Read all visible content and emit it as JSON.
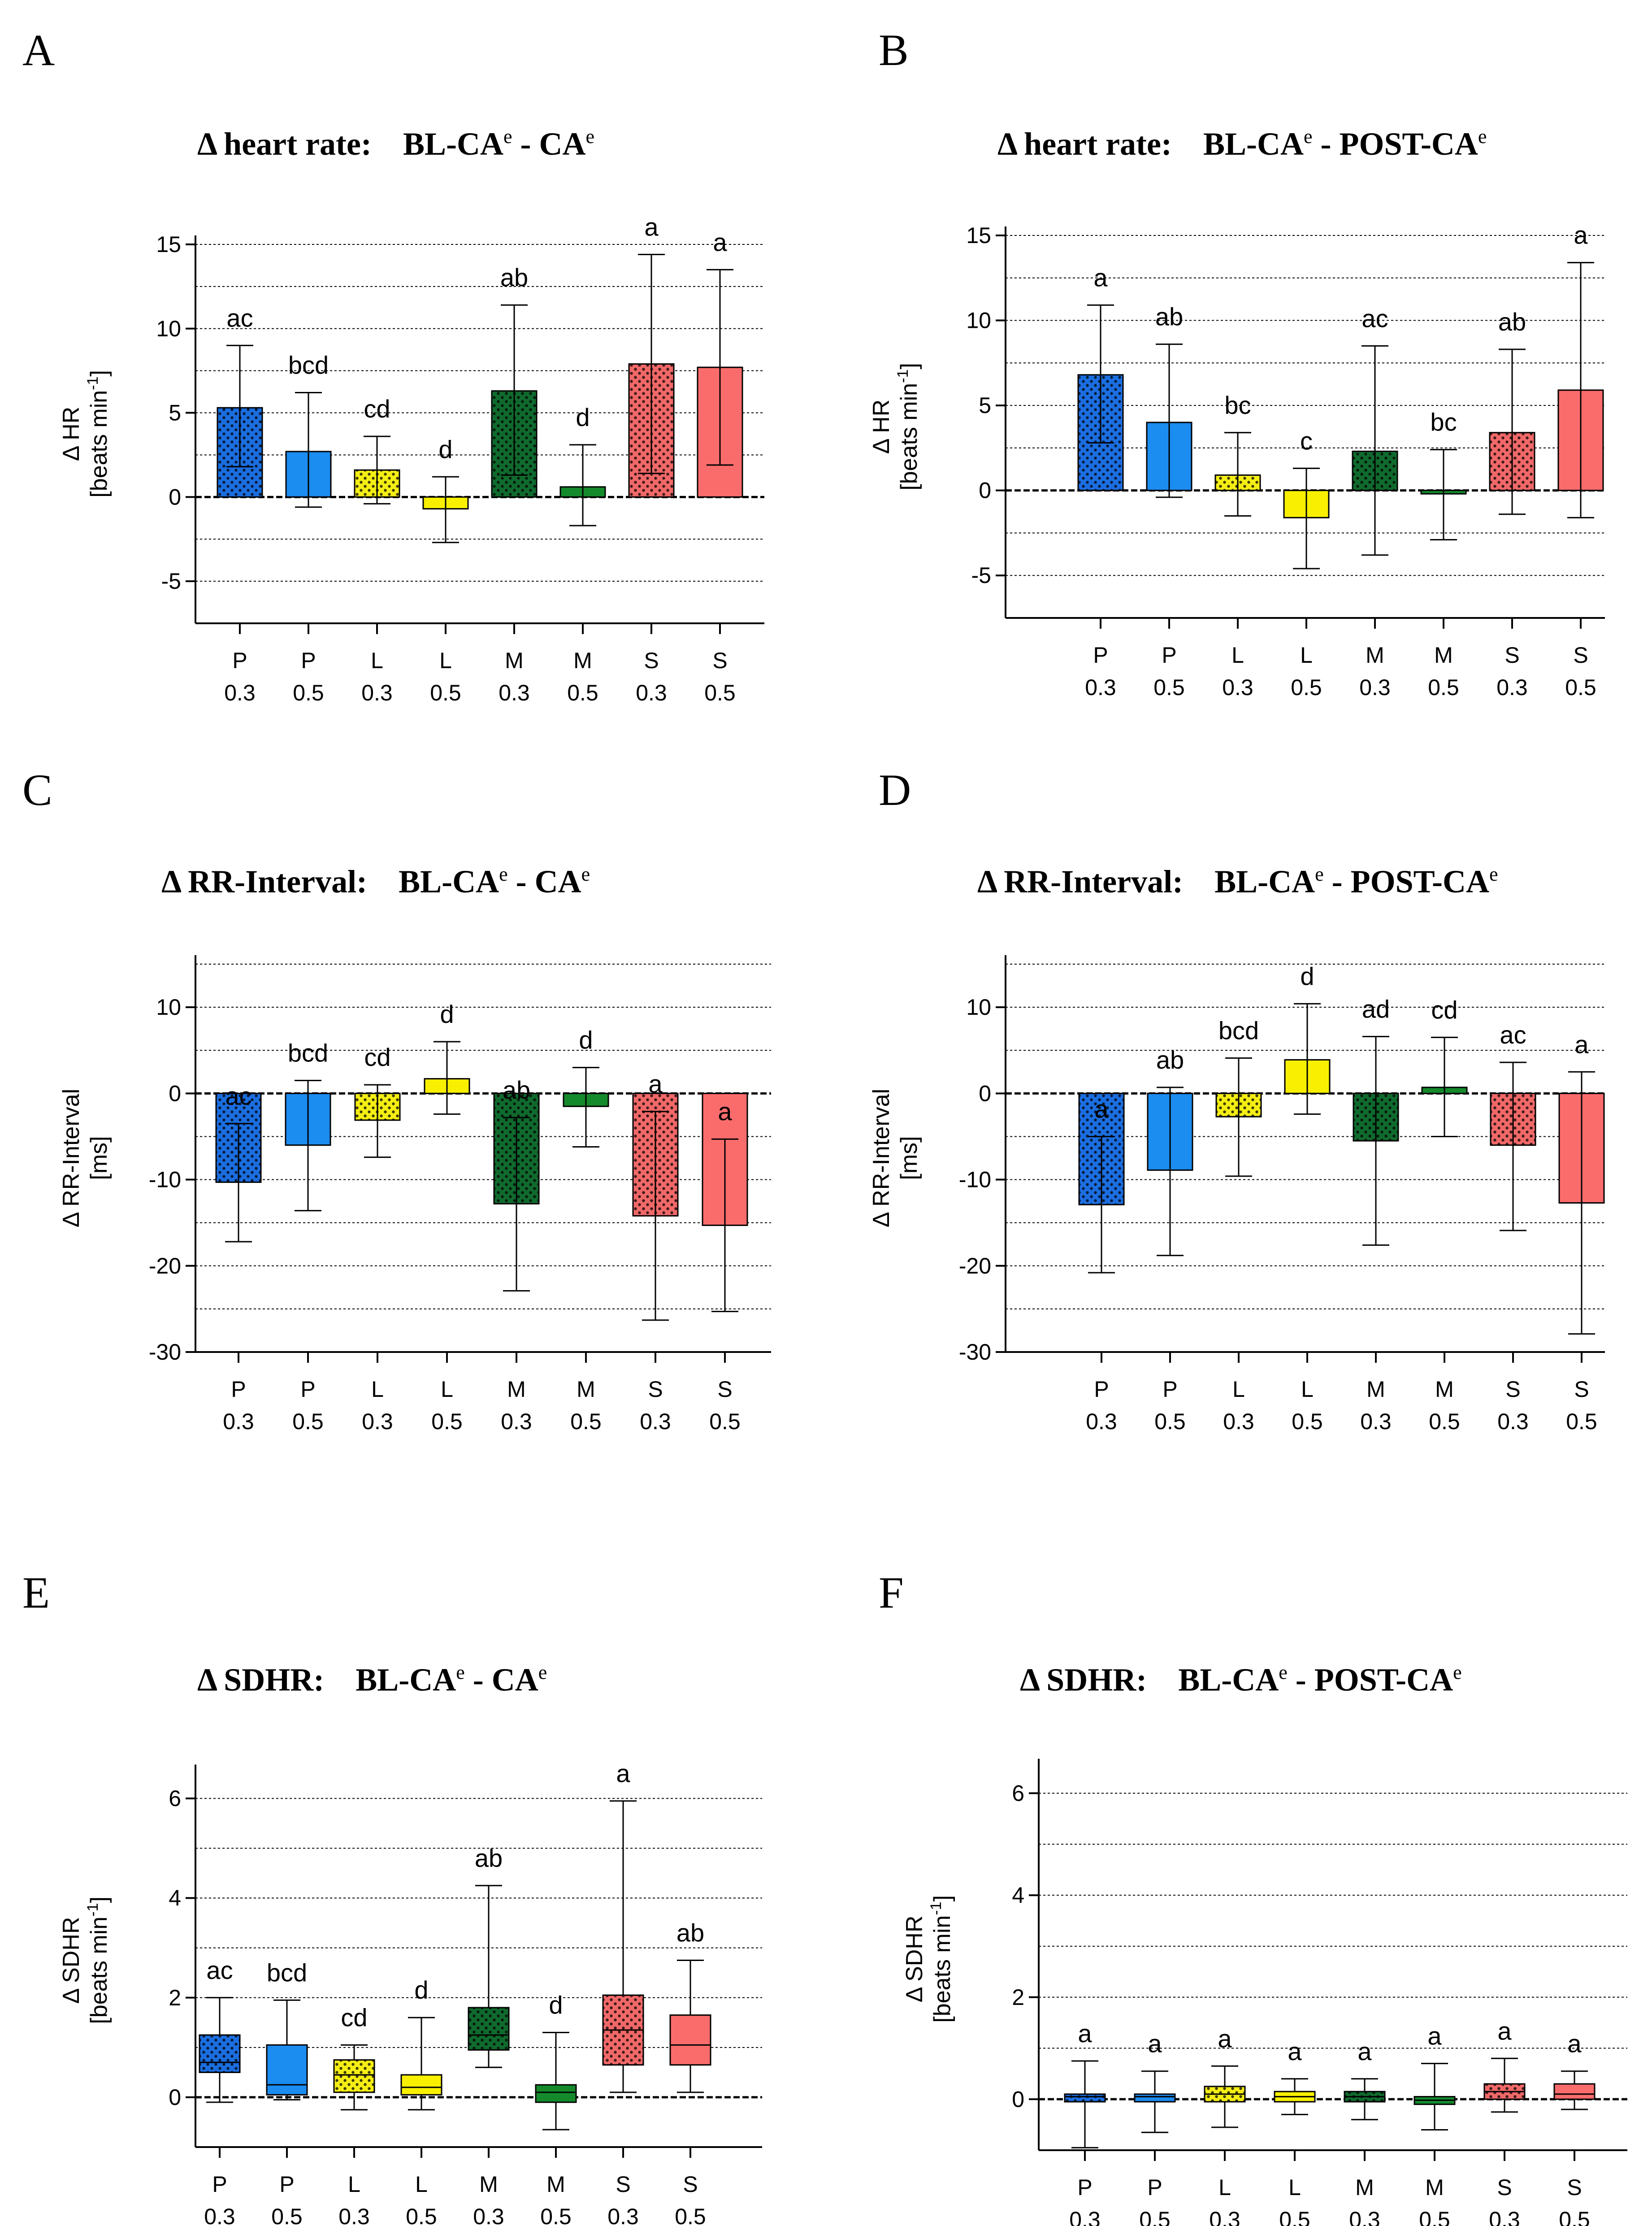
{
  "figure": {
    "category_labels": [
      "P",
      "P",
      "L",
      "L",
      "M",
      "M",
      "S",
      "S"
    ],
    "dose_labels": [
      "0.3",
      "0.5",
      "0.3",
      "0.5",
      "0.3",
      "0.5",
      "0.3",
      "0.5"
    ],
    "colors": [
      "#1b6ee0",
      "#1b8cf0",
      "#f5ee14",
      "#f8f000",
      "#106a2e",
      "#158a2c",
      "#f06868",
      "#fa6c6c"
    ],
    "dotted": [
      true,
      false,
      true,
      false,
      true,
      false,
      true,
      false
    ]
  },
  "chart_data": [
    {
      "panel": "A",
      "type": "bar",
      "title": {
        "main": "Δ heart rate:",
        "part1": "BL-CA",
        "sup1": "e",
        "sep": " - ",
        "part2": "CA",
        "sup2": "e"
      },
      "ylabel": {
        "line1": "Δ HR",
        "line2": "[beats min",
        "sup": "-1",
        "close": "]"
      },
      "ylim": [
        -7.5,
        15
      ],
      "yticks": [
        {
          "v": 15,
          "label": "15"
        },
        {
          "v": 10,
          "label": "10"
        },
        {
          "v": 5,
          "label": "5"
        },
        {
          "v": 0,
          "label": "0"
        },
        {
          "v": -5,
          "label": "-5"
        }
      ],
      "gridlines": [
        15,
        12.5,
        10,
        7.5,
        5,
        2.5,
        -2.5,
        -5
      ],
      "values": [
        5.3,
        2.7,
        1.6,
        -0.7,
        6.3,
        0.6,
        7.9,
        7.7
      ],
      "err_low": [
        1.8,
        -0.6,
        -0.4,
        -2.7,
        1.3,
        -1.7,
        1.4,
        1.9
      ],
      "err_high": [
        9.0,
        6.2,
        3.6,
        1.2,
        11.4,
        3.1,
        14.4,
        13.5
      ],
      "sig": [
        "ac",
        "bcd",
        "cd",
        "d",
        "ab",
        "d",
        "a",
        "a"
      ]
    },
    {
      "panel": "B",
      "type": "bar",
      "title": {
        "main": "Δ heart rate:",
        "part1": "BL-CA",
        "sup1": "e",
        "sep": " - ",
        "part2": "POST-CA",
        "sup2": "e"
      },
      "ylabel": {
        "line1": "Δ HR",
        "line2": "[beats min",
        "sup": "-1",
        "close": "]"
      },
      "ylim": [
        -7.5,
        15
      ],
      "yticks": [
        {
          "v": 15,
          "label": "15"
        },
        {
          "v": 10,
          "label": "10"
        },
        {
          "v": 5,
          "label": "5"
        },
        {
          "v": 0,
          "label": "0"
        },
        {
          "v": -5,
          "label": "-5"
        }
      ],
      "gridlines": [
        15,
        12.5,
        10,
        7.5,
        5,
        2.5,
        -2.5,
        -5
      ],
      "values": [
        6.8,
        4.0,
        0.9,
        -1.6,
        2.3,
        -0.2,
        3.4,
        5.9
      ],
      "err_low": [
        2.8,
        -0.4,
        -1.5,
        -4.6,
        -3.8,
        -2.9,
        -1.4,
        -1.6
      ],
      "err_high": [
        10.9,
        8.6,
        3.4,
        1.3,
        8.5,
        2.4,
        8.3,
        13.4
      ],
      "sig": [
        "a",
        "ab",
        "bc",
        "c",
        "ac",
        "bc",
        "ab",
        "a"
      ]
    },
    {
      "panel": "C",
      "type": "bar",
      "title": {
        "main": "Δ RR-Interval:",
        "part1": "BL-CA",
        "sup1": "e",
        "sep": " - ",
        "part2": "CA",
        "sup2": "e"
      },
      "ylabel": {
        "line1": "Δ RR-Interval",
        "line2": "[ms]",
        "sup": "",
        "close": ""
      },
      "ylim": [
        -30,
        15
      ],
      "yticks": [
        {
          "v": 10,
          "label": "10"
        },
        {
          "v": 0,
          "label": "0"
        },
        {
          "v": -10,
          "label": "-10"
        },
        {
          "v": -20,
          "label": "-20"
        },
        {
          "v": -30,
          "label": "-30"
        }
      ],
      "gridlines": [
        15,
        10,
        5,
        -5,
        -10,
        -15,
        -20,
        -25
      ],
      "values": [
        -10.3,
        -6.0,
        -3.1,
        1.7,
        -12.8,
        -1.5,
        -14.2,
        -15.3
      ],
      "err_low": [
        -17.2,
        -13.6,
        -7.4,
        -2.4,
        -22.9,
        -6.2,
        -26.3,
        -25.3
      ],
      "err_high": [
        -3.5,
        1.5,
        1.0,
        6.0,
        -2.8,
        3.0,
        -2.1,
        -5.3
      ],
      "sig": [
        "ac",
        "bcd",
        "cd",
        "d",
        "ab",
        "d",
        "a",
        "a"
      ]
    },
    {
      "panel": "D",
      "type": "bar",
      "title": {
        "main": "Δ RR-Interval:",
        "part1": "BL-CA",
        "sup1": "e",
        "sep": " - ",
        "part2": "POST-CA",
        "sup2": "e"
      },
      "ylabel": {
        "line1": "Δ RR-Interval",
        "line2": "[ms]",
        "sup": "",
        "close": ""
      },
      "ylim": [
        -30,
        15
      ],
      "yticks": [
        {
          "v": 10,
          "label": "10"
        },
        {
          "v": 0,
          "label": "0"
        },
        {
          "v": -10,
          "label": "-10"
        },
        {
          "v": -20,
          "label": "-20"
        },
        {
          "v": -30,
          "label": "-30"
        }
      ],
      "gridlines": [
        15,
        10,
        5,
        -5,
        -10,
        -15,
        -20,
        -25
      ],
      "values": [
        -12.9,
        -8.9,
        -2.7,
        3.9,
        -5.5,
        0.7,
        -6.0,
        -12.7
      ],
      "err_low": [
        -20.8,
        -18.8,
        -9.6,
        -2.4,
        -17.6,
        -5.0,
        -15.9,
        -27.9
      ],
      "err_high": [
        -5.0,
        0.7,
        4.1,
        10.4,
        6.6,
        6.5,
        3.6,
        2.5
      ],
      "sig": [
        "a",
        "ab",
        "bcd",
        "d",
        "ad",
        "cd",
        "ac",
        "a"
      ]
    },
    {
      "panel": "E",
      "type": "box",
      "title": {
        "main": "Δ SDHR:",
        "part1": "BL-CA",
        "sup1": "e",
        "sep": " - ",
        "part2": "CA",
        "sup2": "e"
      },
      "ylabel": {
        "line1": "Δ SDHR",
        "line2": "[beats min",
        "sup": "-1",
        "close": "]"
      },
      "ylim": [
        -1,
        6.5
      ],
      "yticks": [
        {
          "v": 6,
          "label": "6"
        },
        {
          "v": 4,
          "label": "4"
        },
        {
          "v": 2,
          "label": "2"
        },
        {
          "v": 0,
          "label": "0"
        }
      ],
      "gridlines": [
        6,
        5,
        4,
        3,
        2,
        1
      ],
      "min": [
        -0.1,
        -0.05,
        -0.25,
        -0.25,
        0.6,
        -0.65,
        0.1,
        0.1
      ],
      "q1": [
        0.5,
        0.05,
        0.1,
        0.05,
        0.95,
        -0.1,
        0.65,
        0.65
      ],
      "median": [
        0.7,
        0.25,
        0.45,
        0.2,
        1.25,
        0.1,
        1.35,
        1.05
      ],
      "q3": [
        1.25,
        1.05,
        0.75,
        0.45,
        1.8,
        0.25,
        2.05,
        1.65
      ],
      "max": [
        2.0,
        1.95,
        1.05,
        1.6,
        4.25,
        1.3,
        5.95,
        2.75
      ],
      "sig": [
        "ac",
        "bcd",
        "cd",
        "d",
        "ab",
        "d",
        "a",
        "ab"
      ]
    },
    {
      "panel": "F",
      "type": "box",
      "title": {
        "main": "Δ SDHR:",
        "part1": "BL-CA",
        "sup1": "e",
        "sep": " - ",
        "part2": "POST-CA",
        "sup2": "e"
      },
      "ylabel": {
        "line1": "Δ SDHR",
        "line2": "[beats min",
        "sup": "-1",
        "close": "]"
      },
      "ylim": [
        -1,
        6.5
      ],
      "yticks": [
        {
          "v": 6,
          "label": "6"
        },
        {
          "v": 4,
          "label": "4"
        },
        {
          "v": 2,
          "label": "2"
        },
        {
          "v": 0,
          "label": "0"
        }
      ],
      "gridlines": [
        6,
        5,
        4,
        3,
        2,
        1
      ],
      "min": [
        -0.95,
        -0.65,
        -0.55,
        -0.3,
        -0.4,
        -0.6,
        -0.25,
        -0.2
      ],
      "q1": [
        -0.05,
        -0.05,
        -0.05,
        -0.05,
        -0.05,
        -0.1,
        0.0,
        0.0
      ],
      "median": [
        0.05,
        0.05,
        0.1,
        0.05,
        0.05,
        -0.02,
        0.15,
        0.1
      ],
      "q3": [
        0.1,
        0.1,
        0.25,
        0.15,
        0.15,
        0.05,
        0.3,
        0.3
      ],
      "max": [
        0.75,
        0.55,
        0.65,
        0.4,
        0.4,
        0.7,
        0.8,
        0.55
      ],
      "sig": [
        "a",
        "a",
        "a",
        "a",
        "a",
        "a",
        "a",
        "a"
      ]
    }
  ]
}
